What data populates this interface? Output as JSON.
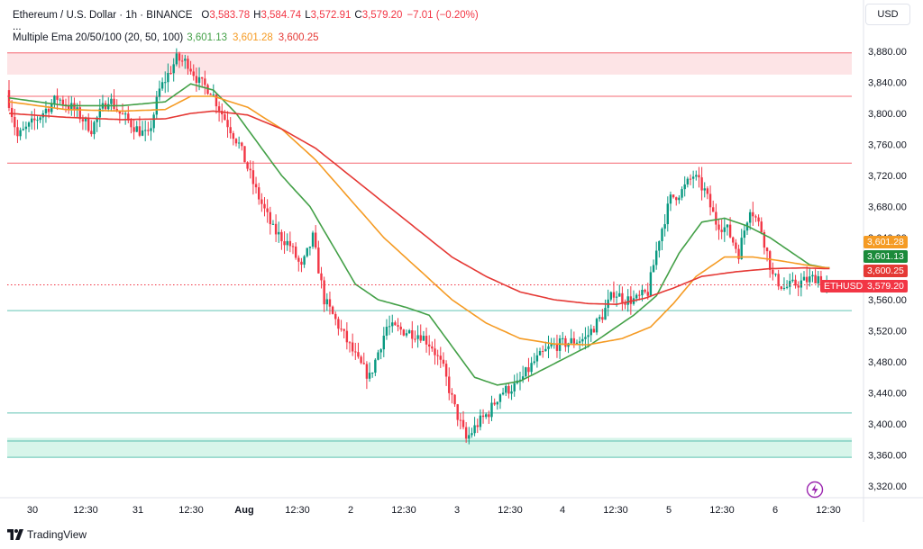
{
  "header": {
    "title": "Ethereum / U.S. Dollar · 1h · BINANCE",
    "ohlc": [
      {
        "k": "O",
        "v": "3,583.78"
      },
      {
        "k": "H",
        "v": "3,584.74"
      },
      {
        "k": "L",
        "v": "3,572.91"
      },
      {
        "k": "C",
        "v": "3,579.20"
      }
    ],
    "change": "−7.01 (−0.20%)",
    "ellipsis": "...",
    "ema_title": "Multiple Ema 20/50/100 (20, 50, 100)",
    "ema_values": [
      "3,601.13",
      "3,601.28",
      "3,600.25"
    ]
  },
  "currency_button": "USD",
  "footer": {
    "brand": "TradingView"
  },
  "colors": {
    "up": "#089981",
    "down": "#f23645",
    "ema20": "#43a047",
    "ema50": "#f59b24",
    "ema100": "#e53935",
    "resistance": "#f23645",
    "support": "#22ab94"
  },
  "chart_data": {
    "type": "candlestick",
    "symbol": "ETHUSD",
    "timeframe": "1h",
    "exchange": "BINANCE",
    "ylim": [
      3300,
      3900
    ],
    "yticks": [
      "3,320.00",
      "3,360.00",
      "3,400.00",
      "3,440.00",
      "3,480.00",
      "3,520.00",
      "3,560.00",
      "3,600.00",
      "3,640.00",
      "3,680.00",
      "3,720.00",
      "3,760.00",
      "3,800.00",
      "3,840.00",
      "3,880.00"
    ],
    "xticks": [
      "30",
      "12:30",
      "31",
      "12:30",
      "Aug",
      "12:30",
      "2",
      "12:30",
      "3",
      "12:30",
      "4",
      "12:30",
      "5",
      "12:30",
      "6",
      "12:30"
    ],
    "last_price": {
      "label": "ETHUSD",
      "value": 3579.2,
      "text": "3,579.20"
    },
    "ema_labels": [
      {
        "name": "EMA 50",
        "value": 3601.28,
        "text": "3,601.28"
      },
      {
        "name": "EMA 20",
        "value": 3601.13,
        "text": "3,601.13"
      },
      {
        "name": "EMA 100",
        "value": 3600.25,
        "text": "3,600.25"
      }
    ],
    "resistance_levels": [
      3878,
      3822,
      3736
    ],
    "resistance_zone": [
      3850,
      3878
    ],
    "support_levels": [
      3546,
      3414,
      3378,
      3357
    ],
    "support_zone": [
      3357,
      3382
    ],
    "candle_keypoints": [
      [
        0,
        3830
      ],
      [
        4,
        3770
      ],
      [
        10,
        3790
      ],
      [
        18,
        3820
      ],
      [
        24,
        3805
      ],
      [
        30,
        3780
      ],
      [
        36,
        3820
      ],
      [
        40,
        3800
      ],
      [
        46,
        3780
      ],
      [
        50,
        3770
      ],
      [
        54,
        3830
      ],
      [
        60,
        3870
      ],
      [
        64,
        3865
      ],
      [
        68,
        3840
      ],
      [
        72,
        3830
      ],
      [
        76,
        3800
      ],
      [
        82,
        3760
      ],
      [
        88,
        3700
      ],
      [
        94,
        3650
      ],
      [
        100,
        3630
      ],
      [
        104,
        3600
      ],
      [
        108,
        3640
      ],
      [
        112,
        3560
      ],
      [
        118,
        3520
      ],
      [
        124,
        3480
      ],
      [
        128,
        3460
      ],
      [
        134,
        3525
      ],
      [
        140,
        3520
      ],
      [
        146,
        3515
      ],
      [
        150,
        3500
      ],
      [
        154,
        3470
      ],
      [
        158,
        3420
      ],
      [
        162,
        3380
      ],
      [
        166,
        3400
      ],
      [
        170,
        3415
      ],
      [
        174,
        3440
      ],
      [
        180,
        3450
      ],
      [
        186,
        3480
      ],
      [
        192,
        3500
      ],
      [
        198,
        3505
      ],
      [
        204,
        3510
      ],
      [
        210,
        3540
      ],
      [
        214,
        3570
      ],
      [
        218,
        3560
      ],
      [
        222,
        3560
      ],
      [
        226,
        3570
      ],
      [
        230,
        3640
      ],
      [
        234,
        3690
      ],
      [
        238,
        3700
      ],
      [
        242,
        3720
      ],
      [
        246,
        3700
      ],
      [
        250,
        3660
      ],
      [
        254,
        3650
      ],
      [
        258,
        3620
      ],
      [
        262,
        3680
      ],
      [
        266,
        3650
      ],
      [
        270,
        3590
      ],
      [
        274,
        3575
      ],
      [
        278,
        3580
      ],
      [
        282,
        3585
      ],
      [
        286,
        3590
      ],
      [
        288,
        3579
      ]
    ],
    "ema20_keypoints": [
      [
        0,
        3820
      ],
      [
        20,
        3810
      ],
      [
        40,
        3810
      ],
      [
        55,
        3815
      ],
      [
        64,
        3838
      ],
      [
        72,
        3830
      ],
      [
        80,
        3800
      ],
      [
        88,
        3760
      ],
      [
        96,
        3720
      ],
      [
        106,
        3680
      ],
      [
        114,
        3630
      ],
      [
        122,
        3580
      ],
      [
        130,
        3560
      ],
      [
        140,
        3550
      ],
      [
        148,
        3540
      ],
      [
        156,
        3500
      ],
      [
        164,
        3460
      ],
      [
        172,
        3450
      ],
      [
        180,
        3455
      ],
      [
        188,
        3470
      ],
      [
        196,
        3485
      ],
      [
        204,
        3500
      ],
      [
        212,
        3520
      ],
      [
        220,
        3540
      ],
      [
        228,
        3565
      ],
      [
        236,
        3620
      ],
      [
        244,
        3660
      ],
      [
        252,
        3665
      ],
      [
        260,
        3655
      ],
      [
        268,
        3640
      ],
      [
        276,
        3620
      ],
      [
        282,
        3605
      ],
      [
        288,
        3601
      ]
    ],
    "ema50_keypoints": [
      [
        0,
        3815
      ],
      [
        20,
        3805
      ],
      [
        40,
        3803
      ],
      [
        55,
        3805
      ],
      [
        64,
        3822
      ],
      [
        72,
        3822
      ],
      [
        84,
        3808
      ],
      [
        96,
        3780
      ],
      [
        108,
        3740
      ],
      [
        120,
        3690
      ],
      [
        132,
        3640
      ],
      [
        144,
        3600
      ],
      [
        156,
        3560
      ],
      [
        168,
        3530
      ],
      [
        180,
        3510
      ],
      [
        192,
        3503
      ],
      [
        204,
        3502
      ],
      [
        216,
        3510
      ],
      [
        226,
        3525
      ],
      [
        234,
        3555
      ],
      [
        242,
        3590
      ],
      [
        252,
        3615
      ],
      [
        262,
        3615
      ],
      [
        272,
        3610
      ],
      [
        280,
        3605
      ],
      [
        288,
        3601
      ]
    ],
    "ema100_keypoints": [
      [
        0,
        3800
      ],
      [
        20,
        3795
      ],
      [
        40,
        3792
      ],
      [
        55,
        3793
      ],
      [
        64,
        3800
      ],
      [
        72,
        3803
      ],
      [
        84,
        3798
      ],
      [
        96,
        3780
      ],
      [
        108,
        3755
      ],
      [
        120,
        3720
      ],
      [
        132,
        3685
      ],
      [
        144,
        3650
      ],
      [
        156,
        3615
      ],
      [
        168,
        3590
      ],
      [
        180,
        3570
      ],
      [
        192,
        3560
      ],
      [
        204,
        3555
      ],
      [
        214,
        3554
      ],
      [
        224,
        3562
      ],
      [
        234,
        3575
      ],
      [
        244,
        3590
      ],
      [
        256,
        3596
      ],
      [
        268,
        3600
      ],
      [
        280,
        3601
      ],
      [
        288,
        3600
      ]
    ],
    "grid": false,
    "legend": "top-left"
  }
}
